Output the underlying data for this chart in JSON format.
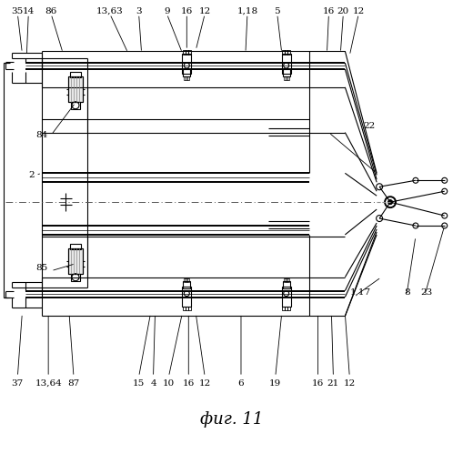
{
  "bg_color": "#ffffff",
  "line_color": "#000000",
  "title": "фиг. 11",
  "title_fontsize": 13,
  "figsize": [
    5.2,
    4.99
  ],
  "dpi": 100,
  "top_labels": [
    [
      "35",
      18
    ],
    [
      "14",
      30
    ],
    [
      "86",
      55
    ],
    [
      "13,63",
      120
    ],
    [
      "3",
      152
    ],
    [
      "9",
      183
    ],
    [
      "16",
      205
    ],
    [
      "12",
      225
    ],
    [
      "1,18",
      272
    ],
    [
      "5",
      305
    ],
    [
      "16",
      362
    ],
    [
      "20",
      378
    ],
    [
      "12",
      395
    ]
  ],
  "bot_labels": [
    [
      "37",
      18
    ],
    [
      "13,64",
      52
    ],
    [
      "87",
      80
    ],
    [
      "15",
      152
    ],
    [
      "4",
      168
    ],
    [
      "10",
      185
    ],
    [
      "16",
      207
    ],
    [
      "12",
      225
    ],
    [
      "6",
      265
    ],
    [
      "19",
      303
    ],
    [
      "16",
      350
    ],
    [
      "21",
      367
    ],
    [
      "12",
      385
    ]
  ]
}
